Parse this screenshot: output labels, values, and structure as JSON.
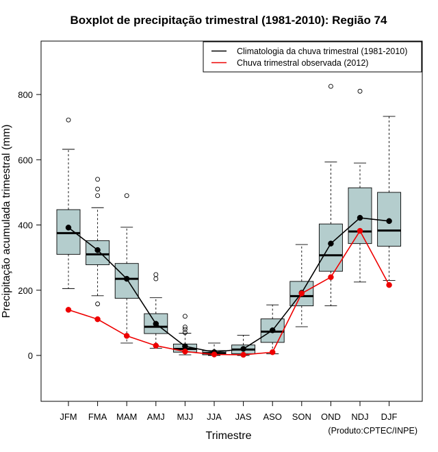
{
  "chart_data": {
    "type": "boxplot",
    "title": "Boxplot de precipitação trimestral (1981-2010): Região 74",
    "xlabel": "Trimestre",
    "ylabel": "Precipitação acumulada trimestral (mm)",
    "ylim": [
      -140,
      960
    ],
    "yticks": [
      0,
      200,
      400,
      600,
      800
    ],
    "credit": "(Produto:CPTEC/INPE)",
    "categories": [
      "JFM",
      "FMA",
      "MAM",
      "AMJ",
      "MJJ",
      "JJA",
      "JAS",
      "ASO",
      "SON",
      "OND",
      "NDJ",
      "DJF"
    ],
    "boxes": [
      {
        "whisker_low": 205,
        "q1": 310,
        "median": 375,
        "q3": 447,
        "whisker_high": 632,
        "outliers": [
          722
        ]
      },
      {
        "whisker_low": 183,
        "q1": 278,
        "median": 310,
        "q3": 352,
        "whisker_high": 453,
        "outliers": [
          158,
          490,
          510,
          540
        ]
      },
      {
        "whisker_low": 38,
        "q1": 175,
        "median": 235,
        "q3": 282,
        "whisker_high": 393,
        "outliers": [
          490
        ]
      },
      {
        "whisker_low": 22,
        "q1": 67,
        "median": 88,
        "q3": 128,
        "whisker_high": 177,
        "outliers": [
          235,
          248
        ]
      },
      {
        "whisker_low": 2,
        "q1": 10,
        "median": 20,
        "q3": 35,
        "whisker_high": 68,
        "outliers": [
          70,
          80,
          87,
          120
        ]
      },
      {
        "whisker_low": 0,
        "q1": 2,
        "median": 7,
        "q3": 15,
        "whisker_high": 38,
        "outliers": []
      },
      {
        "whisker_low": 0,
        "q1": 5,
        "median": 18,
        "q3": 32,
        "whisker_high": 62,
        "outliers": []
      },
      {
        "whisker_low": 5,
        "q1": 40,
        "median": 73,
        "q3": 112,
        "whisker_high": 155,
        "outliers": []
      },
      {
        "whisker_low": 88,
        "q1": 152,
        "median": 182,
        "q3": 227,
        "whisker_high": 340,
        "outliers": []
      },
      {
        "whisker_low": 152,
        "q1": 258,
        "median": 307,
        "q3": 403,
        "whisker_high": 593,
        "outliers": [
          825
        ]
      },
      {
        "whisker_low": 225,
        "q1": 343,
        "median": 380,
        "q3": 514,
        "whisker_high": 590,
        "outliers": [
          810
        ]
      },
      {
        "whisker_low": 230,
        "q1": 335,
        "median": 383,
        "q3": 500,
        "whisker_high": 733,
        "outliers": []
      }
    ],
    "series": [
      {
        "name": "Climatologia da chuva trimestral (1981-2010)",
        "color": "#000000",
        "values": [
          392,
          323,
          235,
          97,
          28,
          10,
          20,
          77,
          192,
          343,
          422,
          412
        ]
      },
      {
        "name": "Chuva trimestral observada (2012)",
        "color": "#ee0000",
        "values": [
          140,
          111,
          60,
          30,
          12,
          3,
          2,
          10,
          190,
          240,
          382,
          216
        ]
      }
    ],
    "box_fill": "#b4cdcd",
    "legend_position": "top-right"
  }
}
